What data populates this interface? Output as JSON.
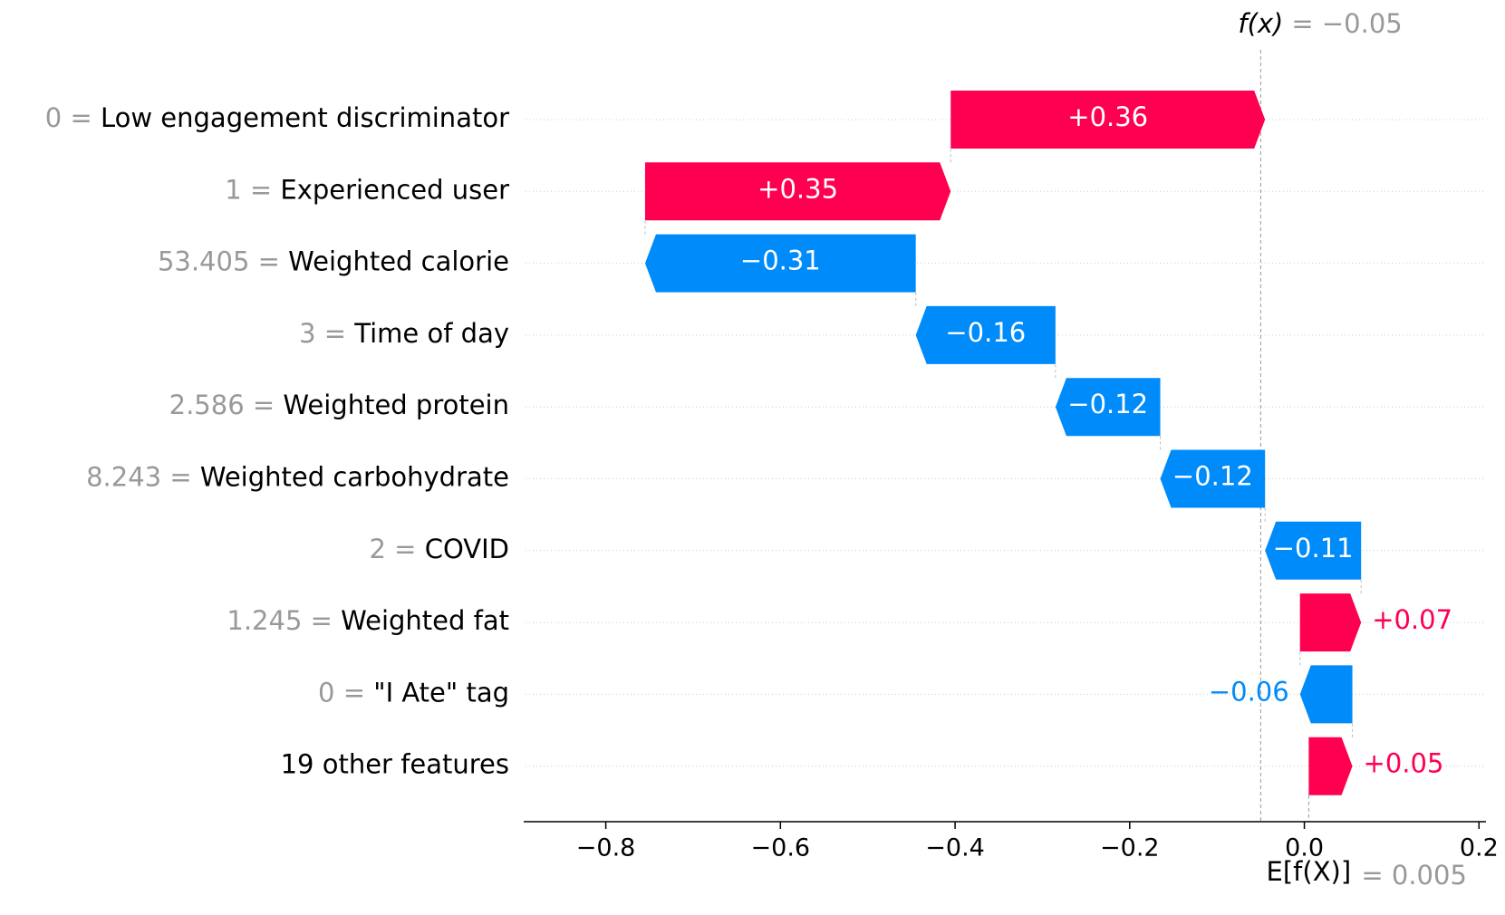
{
  "chart_data": {
    "type": "waterfall",
    "categories": [
      "Low engagement discriminator",
      "Experienced user",
      "Weighted calorie",
      "Time of day",
      "Weighted protein",
      "Weighted carbohydrate",
      "COVID",
      "Weighted fat",
      "\"I Ate\" tag",
      "19 other features"
    ],
    "feature_values": [
      "0 =",
      "1 =",
      "53.405 =",
      "3 =",
      "2.586 =",
      "8.243 =",
      "2 =",
      "1.245 =",
      "0 =",
      null
    ],
    "values": [
      0.36,
      0.35,
      -0.31,
      -0.16,
      -0.12,
      -0.12,
      -0.11,
      0.07,
      -0.06,
      0.05
    ],
    "value_labels": [
      "+0.36",
      "+0.35",
      "−0.31",
      "−0.16",
      "−0.12",
      "−0.12",
      "−0.11",
      "+0.07",
      "−0.06",
      "+0.05"
    ],
    "base": {
      "label": "E[f(X)]",
      "value": 0.005,
      "value_label": "= 0.005"
    },
    "fx": {
      "label": "f(x)",
      "value": -0.05,
      "value_label": "= −0.05"
    },
    "positive_color": "#ff0051",
    "negative_color": "#008bfb",
    "xlim": [
      -0.894,
      0.208
    ],
    "xticks": [
      {
        "value": -0.8,
        "label": "−0.8"
      },
      {
        "value": -0.6,
        "label": "−0.6"
      },
      {
        "value": -0.4,
        "label": "−0.4"
      },
      {
        "value": -0.2,
        "label": "−0.2"
      },
      {
        "value": 0.0,
        "label": "0.0"
      },
      0.2
    ]
  }
}
